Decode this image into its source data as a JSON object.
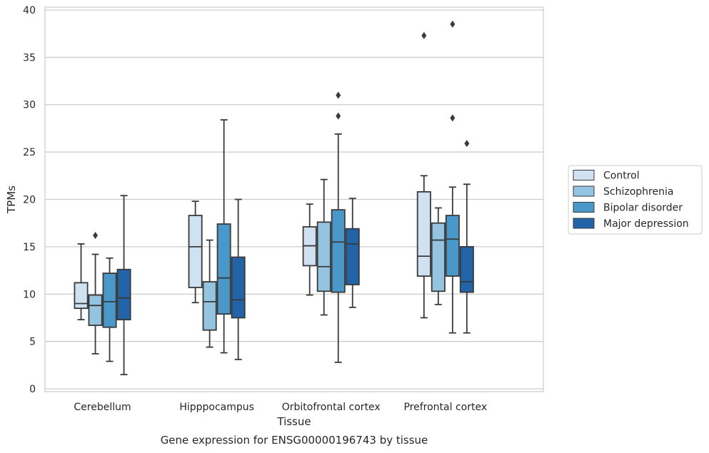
{
  "chart_data": {
    "type": "box",
    "caption": "Gene expression for ENSG00000196743 by tissue",
    "xlabel": "Tissue",
    "ylabel": "TPMs",
    "ylim": [
      -0.3,
      40.3
    ],
    "yticks": [
      0,
      5,
      10,
      15,
      20,
      25,
      30,
      35,
      40
    ],
    "grid": true,
    "legend_position": "right",
    "categories": [
      "Cerebellum",
      "Hipppocampus",
      "Orbitofrontal cortex",
      "Prefrontal cortex"
    ],
    "series": [
      {
        "name": "Control",
        "color": "#d0e1f2",
        "boxes": [
          {
            "whislo": 7.3,
            "q1": 8.5,
            "med": 9.0,
            "q3": 11.2,
            "whishi": 15.3,
            "fliers": []
          },
          {
            "whislo": 9.1,
            "q1": 10.7,
            "med": 15.0,
            "q3": 18.3,
            "whishi": 19.8,
            "fliers": []
          },
          {
            "whislo": 9.9,
            "q1": 13.0,
            "med": 15.1,
            "q3": 17.1,
            "whishi": 19.5,
            "fliers": []
          },
          {
            "whislo": 7.5,
            "q1": 11.9,
            "med": 14.0,
            "q3": 20.8,
            "whishi": 22.5,
            "fliers": [
              37.3
            ]
          }
        ]
      },
      {
        "name": "Schizophrenia",
        "color": "#94c4df",
        "boxes": [
          {
            "whislo": 3.7,
            "q1": 6.7,
            "med": 8.8,
            "q3": 9.9,
            "whishi": 14.2,
            "fliers": [
              16.2
            ]
          },
          {
            "whislo": 4.4,
            "q1": 6.2,
            "med": 9.2,
            "q3": 11.3,
            "whishi": 15.7,
            "fliers": []
          },
          {
            "whislo": 7.8,
            "q1": 10.3,
            "med": 12.9,
            "q3": 17.6,
            "whishi": 22.1,
            "fliers": []
          },
          {
            "whislo": 8.9,
            "q1": 10.3,
            "med": 15.7,
            "q3": 17.5,
            "whishi": 19.1,
            "fliers": []
          }
        ]
      },
      {
        "name": "Bipolar disorder",
        "color": "#4a98c9",
        "boxes": [
          {
            "whislo": 2.9,
            "q1": 6.5,
            "med": 9.2,
            "q3": 12.2,
            "whishi": 13.8,
            "fliers": []
          },
          {
            "whislo": 3.8,
            "q1": 7.9,
            "med": 11.7,
            "q3": 17.4,
            "whishi": 28.4,
            "fliers": []
          },
          {
            "whislo": 2.8,
            "q1": 10.2,
            "med": 15.5,
            "q3": 18.9,
            "whishi": 26.9,
            "fliers": [
              28.8,
              31.0
            ]
          },
          {
            "whislo": 5.9,
            "q1": 11.9,
            "med": 15.8,
            "q3": 18.3,
            "whishi": 21.3,
            "fliers": [
              28.6,
              38.5
            ]
          }
        ]
      },
      {
        "name": "Major depression",
        "color": "#2363a7",
        "boxes": [
          {
            "whislo": 1.5,
            "q1": 7.3,
            "med": 9.6,
            "q3": 12.6,
            "whishi": 20.4,
            "fliers": []
          },
          {
            "whislo": 3.1,
            "q1": 7.5,
            "med": 9.4,
            "q3": 13.9,
            "whishi": 20.0,
            "fliers": []
          },
          {
            "whislo": 8.6,
            "q1": 11.0,
            "med": 15.3,
            "q3": 16.9,
            "whishi": 20.1,
            "fliers": []
          },
          {
            "whislo": 5.9,
            "q1": 10.2,
            "med": 11.3,
            "q3": 15.0,
            "whishi": 21.6,
            "fliers": [
              25.9
            ]
          }
        ]
      }
    ]
  }
}
